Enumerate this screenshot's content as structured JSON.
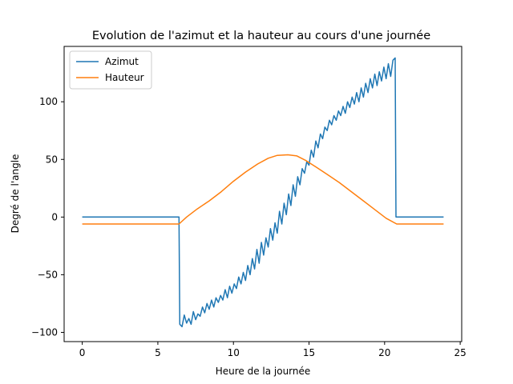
{
  "chart_data": {
    "type": "line",
    "title": "Evolution de l'azimut et la hauteur au cours d'une journée",
    "xlabel": "Heure de la journée",
    "ylabel": "Degré de l'angle",
    "xlim": [
      -1.2,
      25.1
    ],
    "ylim": [
      -108,
      148
    ],
    "xticks": [
      0,
      5,
      10,
      15,
      20,
      25
    ],
    "yticks": [
      -100,
      -50,
      0,
      50,
      100
    ],
    "grid": false,
    "legend_position": "top-left",
    "colors": {
      "Azimut": "#1f77b4",
      "Hauteur": "#ff7f0e"
    },
    "series": [
      {
        "name": "Azimut",
        "x": [
          0,
          0.5,
          1,
          1.5,
          2,
          2.5,
          3,
          3.5,
          4,
          4.5,
          5,
          5.5,
          6,
          6.4,
          6.45,
          6.6,
          6.75,
          6.9,
          7.05,
          7.2,
          7.35,
          7.5,
          7.65,
          7.8,
          7.95,
          8.1,
          8.25,
          8.4,
          8.55,
          8.7,
          8.85,
          9.0,
          9.15,
          9.3,
          9.45,
          9.6,
          9.75,
          9.9,
          10.05,
          10.2,
          10.35,
          10.5,
          10.65,
          10.8,
          10.95,
          11.1,
          11.25,
          11.4,
          11.55,
          11.7,
          11.85,
          12.0,
          12.15,
          12.3,
          12.45,
          12.6,
          12.75,
          12.9,
          13.05,
          13.2,
          13.35,
          13.5,
          13.65,
          13.8,
          13.95,
          14.1,
          14.25,
          14.4,
          14.55,
          14.7,
          14.85,
          15.0,
          15.15,
          15.3,
          15.45,
          15.6,
          15.75,
          15.9,
          16.05,
          16.2,
          16.35,
          16.5,
          16.65,
          16.8,
          16.95,
          17.1,
          17.25,
          17.4,
          17.55,
          17.7,
          17.85,
          18.0,
          18.15,
          18.3,
          18.45,
          18.6,
          18.75,
          18.9,
          19.05,
          19.2,
          19.35,
          19.5,
          19.65,
          19.8,
          19.95,
          20.1,
          20.25,
          20.4,
          20.55,
          20.7,
          20.75,
          21.0,
          21.5,
          22,
          22.5,
          23,
          23.5,
          23.9
        ],
        "y": [
          0,
          0,
          0,
          0,
          0,
          0,
          0,
          0,
          0,
          0,
          0,
          0,
          0,
          0,
          -93,
          -95,
          -85,
          -92,
          -88,
          -93,
          -82,
          -89,
          -84,
          -86,
          -78,
          -83,
          -75,
          -80,
          -72,
          -78,
          -70,
          -74,
          -68,
          -72,
          -63,
          -70,
          -60,
          -66,
          -58,
          -62,
          -52,
          -58,
          -48,
          -55,
          -42,
          -50,
          -36,
          -45,
          -28,
          -40,
          -22,
          -33,
          -18,
          -26,
          -10,
          -20,
          -5,
          -14,
          5,
          -6,
          12,
          2,
          20,
          10,
          28,
          18,
          35,
          28,
          42,
          38,
          48,
          45,
          58,
          52,
          66,
          60,
          72,
          68,
          78,
          75,
          84,
          80,
          88,
          84,
          92,
          88,
          96,
          90,
          100,
          95,
          104,
          98,
          108,
          100,
          112,
          104,
          116,
          108,
          120,
          112,
          124,
          114,
          126,
          118,
          130,
          120,
          133,
          122,
          136,
          138,
          0,
          0,
          0,
          0,
          0,
          0,
          0,
          0
        ]
      },
      {
        "name": "Hauteur",
        "x": [
          0,
          6.4,
          6.9,
          7.6,
          8.4,
          9.2,
          10.0,
          10.8,
          11.6,
          12.3,
          12.9,
          13.6,
          14.2,
          14.8,
          15.5,
          16.2,
          17.0,
          17.8,
          18.6,
          19.4,
          20.1,
          20.8,
          23.9
        ],
        "y": [
          -6,
          -6,
          0,
          7,
          14,
          22,
          31,
          39,
          46,
          51,
          53.5,
          54,
          53,
          49,
          43,
          37,
          30,
          22,
          14,
          6,
          -1,
          -6,
          -6
        ]
      }
    ]
  }
}
